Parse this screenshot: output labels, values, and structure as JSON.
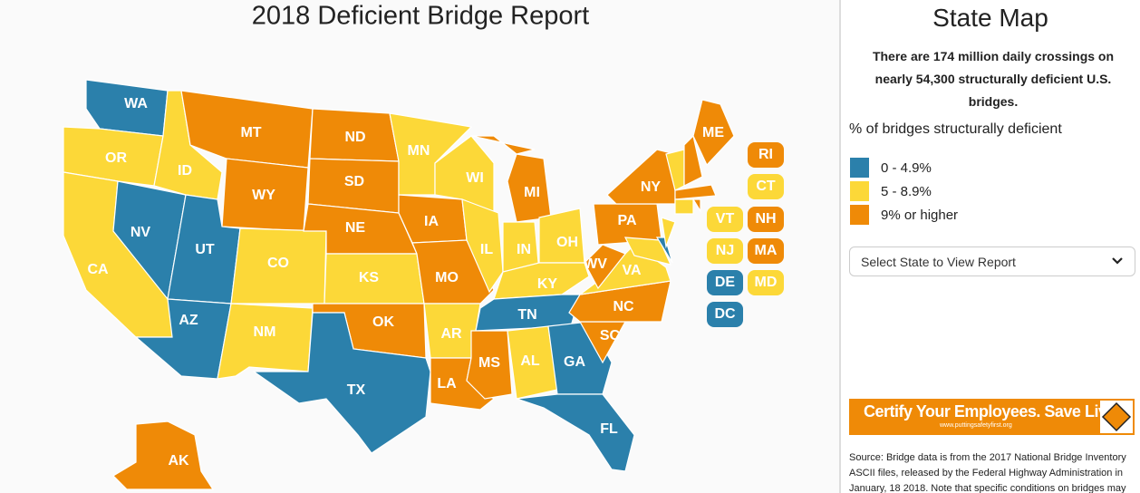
{
  "header": {
    "title": "2018 Deficient Bridge Report"
  },
  "states": [
    {
      "label": "WA",
      "color": "#2b80ab"
    },
    {
      "label": "OR",
      "color": "#fcd838"
    },
    {
      "label": "CA",
      "color": "#fcd838"
    },
    {
      "label": "NV",
      "color": "#2b80ab"
    },
    {
      "label": "ID",
      "color": "#fcd838"
    },
    {
      "label": "MT",
      "color": "#ef8a07"
    },
    {
      "label": "WY",
      "color": "#ef8a07"
    },
    {
      "label": "UT",
      "color": "#2b80ab"
    },
    {
      "label": "AZ",
      "color": "#2b80ab"
    },
    {
      "label": "CO",
      "color": "#fcd838"
    },
    {
      "label": "NM",
      "color": "#fcd838"
    },
    {
      "label": "ND",
      "color": "#ef8a07"
    },
    {
      "label": "SD",
      "color": "#ef8a07"
    },
    {
      "label": "NE",
      "color": "#ef8a07"
    },
    {
      "label": "KS",
      "color": "#fcd838"
    },
    {
      "label": "OK",
      "color": "#ef8a07"
    },
    {
      "label": "TX",
      "color": "#2b80ab"
    },
    {
      "label": "MN",
      "color": "#fcd838"
    },
    {
      "label": "IA",
      "color": "#ef8a07"
    },
    {
      "label": "MO",
      "color": "#ef8a07"
    },
    {
      "label": "AR",
      "color": "#fcd838"
    },
    {
      "label": "LA",
      "color": "#ef8a07"
    },
    {
      "label": "WI",
      "color": "#fcd838"
    },
    {
      "label": "IL",
      "color": "#fcd838"
    },
    {
      "label": "MI",
      "color": "#ef8a07"
    },
    {
      "label": "IN",
      "color": "#fcd838"
    },
    {
      "label": "OH",
      "color": "#fcd838"
    },
    {
      "label": "KY",
      "color": "#fcd838"
    },
    {
      "label": "TN",
      "color": "#2b80ab"
    },
    {
      "label": "MS",
      "color": "#ef8a07"
    },
    {
      "label": "AL",
      "color": "#fcd838"
    },
    {
      "label": "GA",
      "color": "#2b80ab"
    },
    {
      "label": "FL",
      "color": "#2b80ab"
    },
    {
      "label": "SC",
      "color": "#ef8a07"
    },
    {
      "label": "NC",
      "color": "#ef8a07"
    },
    {
      "label": "VA",
      "color": "#fcd838"
    },
    {
      "label": "WV",
      "color": "#ef8a07"
    },
    {
      "label": "PA",
      "color": "#ef8a07"
    },
    {
      "label": "NY",
      "color": "#ef8a07"
    },
    {
      "label": "MD",
      "color": "#fcd838"
    },
    {
      "label": "DE",
      "color": "#2b80ab"
    },
    {
      "label": "NJ",
      "color": "#fcd838"
    },
    {
      "label": "VT",
      "color": "#fcd838"
    },
    {
      "label": "NH",
      "color": "#ef8a07"
    },
    {
      "label": "ME",
      "color": "#ef8a07"
    },
    {
      "label": "MA",
      "color": "#ef8a07"
    },
    {
      "label": "CT",
      "color": "#fcd838"
    },
    {
      "label": "RI",
      "color": "#ef8a07"
    },
    {
      "label": "AK",
      "color": "#ef8a07"
    },
    {
      "label": "DC",
      "color": "#2b80ab"
    }
  ],
  "sidebar": {
    "title": "State Map",
    "summary": "There are 174 million daily crossings on nearly 54,300 structurally deficient U.S. bridges.",
    "legend_title": "% of bridges structurally deficient",
    "legend": [
      {
        "label": "0 - 4.9%",
        "color": "#2b80ab"
      },
      {
        "label": "5 - 8.9%",
        "color": "#fcd838"
      },
      {
        "label": "9% or higher",
        "color": "#ef8a07"
      }
    ],
    "select": "Select State to View Report",
    "ad": {
      "text": "Certify Your Employees. Save Lives.",
      "url": "www.puttingsafetyfirst.org"
    },
    "source": "Source: Bridge data is from the 2017 National Bridge Inventory ASCII files, released by the Federal Highway Administration in January, 18 2018. Note that specific conditions on bridges may"
  }
}
